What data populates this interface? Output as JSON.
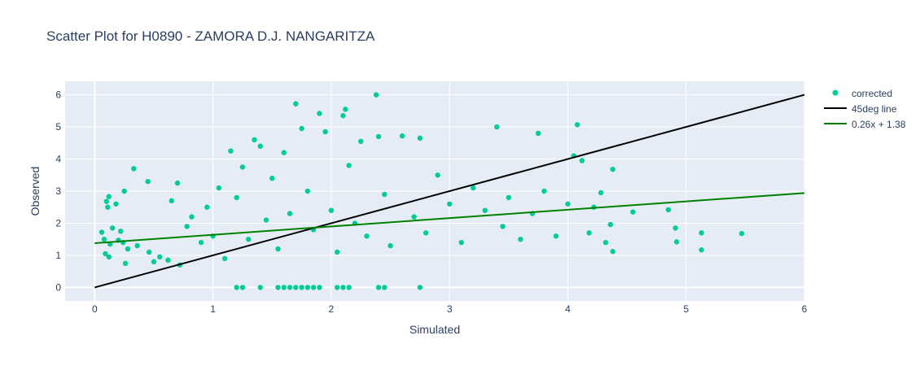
{
  "chart_data": {
    "type": "scatter",
    "title": "Scatter Plot for H0890 - ZAMORA D.J. NANGARITZA",
    "xlabel": "Simulated",
    "ylabel": "Observed",
    "xlim": [
      -0.25,
      6
    ],
    "ylim": [
      -0.42,
      6.42
    ],
    "x_ticks": [
      "0",
      "1",
      "2",
      "3",
      "4",
      "5",
      "6"
    ],
    "y_ticks": [
      "0",
      "1",
      "2",
      "3",
      "4",
      "5",
      "6"
    ],
    "grid": true,
    "legend_position": "top-right",
    "colors": {
      "plot_bg": "#e5ecf6",
      "grid": "#ffffff",
      "corrected": "#00cc96",
      "identity": "#000000",
      "fit": "#008000"
    },
    "series": [
      {
        "name": "corrected",
        "mode": "markers",
        "points": [
          [
            0.06,
            1.72
          ],
          [
            0.08,
            1.5
          ],
          [
            0.09,
            1.05
          ],
          [
            0.1,
            2.68
          ],
          [
            0.11,
            2.5
          ],
          [
            0.12,
            0.95
          ],
          [
            0.13,
            1.35
          ],
          [
            0.15,
            1.85
          ],
          [
            0.12,
            2.83
          ],
          [
            0.18,
            2.6
          ],
          [
            0.2,
            1.47
          ],
          [
            0.22,
            1.75
          ],
          [
            0.24,
            1.4
          ],
          [
            0.25,
            3.0
          ],
          [
            0.28,
            1.2
          ],
          [
            0.33,
            3.7
          ],
          [
            0.36,
            1.3
          ],
          [
            0.26,
            0.75
          ],
          [
            0.45,
            3.3
          ],
          [
            0.46,
            1.1
          ],
          [
            0.5,
            0.8
          ],
          [
            0.55,
            0.95
          ],
          [
            0.62,
            0.85
          ],
          [
            0.65,
            2.7
          ],
          [
            0.7,
            3.25
          ],
          [
            0.72,
            0.7
          ],
          [
            0.78,
            1.9
          ],
          [
            0.82,
            2.2
          ],
          [
            0.9,
            1.4
          ],
          [
            0.95,
            2.5
          ],
          [
            1.0,
            1.6
          ],
          [
            1.05,
            3.1
          ],
          [
            1.1,
            0.9
          ],
          [
            1.15,
            4.25
          ],
          [
            1.2,
            2.8
          ],
          [
            1.25,
            3.75
          ],
          [
            1.3,
            1.5
          ],
          [
            1.35,
            4.6
          ],
          [
            1.4,
            4.4
          ],
          [
            1.45,
            2.1
          ],
          [
            1.5,
            3.4
          ],
          [
            1.55,
            1.2
          ],
          [
            1.6,
            4.2
          ],
          [
            1.65,
            2.3
          ],
          [
            1.7,
            5.72
          ],
          [
            1.75,
            4.95
          ],
          [
            1.8,
            3.0
          ],
          [
            1.85,
            1.8
          ],
          [
            1.9,
            5.42
          ],
          [
            1.95,
            4.85
          ],
          [
            2.0,
            2.4
          ],
          [
            2.05,
            1.1
          ],
          [
            2.1,
            5.35
          ],
          [
            2.12,
            5.55
          ],
          [
            2.15,
            3.8
          ],
          [
            2.2,
            2.0
          ],
          [
            2.25,
            4.55
          ],
          [
            2.3,
            1.6
          ],
          [
            2.38,
            6.0
          ],
          [
            2.4,
            4.7
          ],
          [
            2.45,
            2.9
          ],
          [
            2.5,
            1.3
          ],
          [
            2.6,
            4.72
          ],
          [
            2.7,
            2.2
          ],
          [
            2.75,
            4.65
          ],
          [
            2.8,
            1.7
          ],
          [
            2.9,
            3.5
          ],
          [
            3.0,
            2.6
          ],
          [
            3.1,
            1.4
          ],
          [
            3.2,
            3.1
          ],
          [
            3.3,
            2.4
          ],
          [
            3.4,
            5.0
          ],
          [
            3.45,
            1.9
          ],
          [
            3.5,
            2.8
          ],
          [
            3.6,
            1.5
          ],
          [
            3.7,
            2.3
          ],
          [
            3.75,
            4.8
          ],
          [
            3.8,
            3.0
          ],
          [
            3.9,
            1.6
          ],
          [
            4.0,
            2.6
          ],
          [
            4.05,
            4.1
          ],
          [
            4.08,
            5.07
          ],
          [
            4.12,
            3.95
          ],
          [
            4.18,
            1.7
          ],
          [
            4.22,
            2.5
          ],
          [
            4.28,
            2.95
          ],
          [
            4.32,
            1.4
          ],
          [
            4.36,
            1.96
          ],
          [
            4.38,
            1.12
          ],
          [
            4.38,
            3.68
          ],
          [
            4.55,
            2.35
          ],
          [
            4.85,
            2.42
          ],
          [
            4.91,
            1.85
          ],
          [
            4.92,
            1.42
          ],
          [
            5.13,
            1.7
          ],
          [
            5.13,
            1.17
          ],
          [
            5.47,
            1.68
          ],
          [
            1.2,
            0.0
          ],
          [
            1.25,
            0.0
          ],
          [
            1.4,
            0.0
          ],
          [
            1.55,
            0.0
          ],
          [
            1.6,
            0.0
          ],
          [
            1.65,
            0.0
          ],
          [
            1.7,
            0.0
          ],
          [
            1.75,
            0.0
          ],
          [
            1.8,
            0.0
          ],
          [
            1.85,
            0.0
          ],
          [
            1.9,
            0.0
          ],
          [
            2.05,
            0.0
          ],
          [
            2.1,
            0.0
          ],
          [
            2.15,
            0.0
          ],
          [
            2.4,
            0.0
          ],
          [
            2.45,
            0.0
          ],
          [
            2.75,
            0.0
          ]
        ]
      },
      {
        "name": "45deg line",
        "mode": "lines",
        "x": [
          0,
          6
        ],
        "y": [
          0,
          6
        ]
      },
      {
        "name": "0.26x + 1.38",
        "mode": "lines",
        "x": [
          0,
          6
        ],
        "y": [
          1.38,
          2.94
        ]
      }
    ]
  }
}
